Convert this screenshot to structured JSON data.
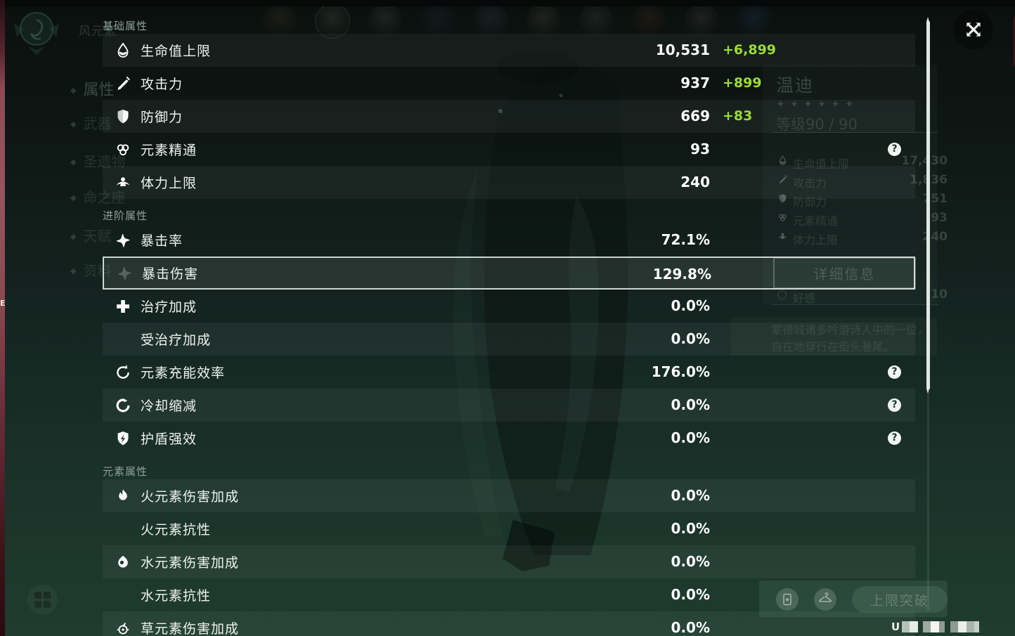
{
  "colors": {
    "accent_green": "#9bdc34",
    "panel_green": "#12211b",
    "highlight_border": "#e3ebe5",
    "scrollbar": "#dfe7e1"
  },
  "overlay": {
    "sections": [
      {
        "title": "基础属性",
        "rows": [
          {
            "icon": "hp-icon",
            "label": "生命值上限",
            "value": "10,531",
            "bonus": "+6,899",
            "help": false,
            "striped": true,
            "selected": false
          },
          {
            "icon": "atk-icon",
            "label": "攻击力",
            "value": "937",
            "bonus": "+899",
            "help": false,
            "striped": false,
            "selected": false
          },
          {
            "icon": "def-icon",
            "label": "防御力",
            "value": "669",
            "bonus": "+83",
            "help": false,
            "striped": true,
            "selected": false
          },
          {
            "icon": "em-icon",
            "label": "元素精通",
            "value": "93",
            "bonus": "",
            "help": true,
            "striped": false,
            "selected": false
          },
          {
            "icon": "stamina-icon",
            "label": "体力上限",
            "value": "240",
            "bonus": "",
            "help": false,
            "striped": true,
            "selected": false
          }
        ]
      },
      {
        "title": "进阶属性",
        "rows": [
          {
            "icon": "crit-rate-icon",
            "label": "暴击率",
            "value": "72.1%",
            "bonus": "",
            "help": false,
            "striped": false,
            "selected": false
          },
          {
            "icon": "crit-dmg-icon",
            "label": "暴击伤害",
            "value": "129.8%",
            "bonus": "",
            "help": false,
            "striped": true,
            "selected": true
          },
          {
            "icon": "healing-bonus-icon",
            "label": "治疗加成",
            "value": "0.0%",
            "bonus": "",
            "help": false,
            "striped": false,
            "selected": false
          },
          {
            "icon": "",
            "label": "受治疗加成",
            "value": "0.0%",
            "bonus": "",
            "help": false,
            "striped": true,
            "selected": false
          },
          {
            "icon": "energy-recharge-icon",
            "label": "元素充能效率",
            "value": "176.0%",
            "bonus": "",
            "help": true,
            "striped": false,
            "selected": false
          },
          {
            "icon": "cooldown-icon",
            "label": "冷却缩减",
            "value": "0.0%",
            "bonus": "",
            "help": true,
            "striped": true,
            "selected": false
          },
          {
            "icon": "shield-strength-icon",
            "label": "护盾强效",
            "value": "0.0%",
            "bonus": "",
            "help": true,
            "striped": false,
            "selected": false
          }
        ]
      },
      {
        "title": "元素属性",
        "rows": [
          {
            "icon": "pyro-icon",
            "label": "火元素伤害加成",
            "value": "0.0%",
            "bonus": "",
            "help": false,
            "striped": true,
            "selected": false
          },
          {
            "icon": "",
            "label": "火元素抗性",
            "value": "0.0%",
            "bonus": "",
            "help": false,
            "striped": false,
            "selected": false
          },
          {
            "icon": "hydro-icon",
            "label": "水元素伤害加成",
            "value": "0.0%",
            "bonus": "",
            "help": false,
            "striped": true,
            "selected": false
          },
          {
            "icon": "",
            "label": "水元素抗性",
            "value": "0.0%",
            "bonus": "",
            "help": false,
            "striped": false,
            "selected": false
          },
          {
            "icon": "dendro-icon",
            "label": "草元素伤害加成",
            "value": "0.0%",
            "bonus": "",
            "help": false,
            "striped": true,
            "selected": false
          }
        ]
      }
    ],
    "help_glyph": "?"
  },
  "background": {
    "element_label": "风元素",
    "sidebar": [
      {
        "label": "属性",
        "selected": true
      },
      {
        "label": "武器",
        "selected": false
      },
      {
        "label": "圣遗物",
        "selected": false
      },
      {
        "label": "命之座",
        "selected": false
      },
      {
        "label": "天赋",
        "selected": false
      },
      {
        "label": "资料",
        "selected": false
      }
    ],
    "character": {
      "name": "温迪",
      "stars": 6,
      "level_label": "等级90 / 90",
      "stats": [
        {
          "icon": "hp-icon",
          "label": "生命值上限",
          "value": "17,430"
        },
        {
          "icon": "atk-icon",
          "label": "攻击力",
          "value": "1,836"
        },
        {
          "icon": "def-icon",
          "label": "防御力",
          "value": "751"
        },
        {
          "icon": "em-icon",
          "label": "元素精通",
          "value": "93"
        },
        {
          "icon": "stamina-icon",
          "label": "体力上限",
          "value": "240"
        }
      ],
      "detail_button": "详细信息",
      "friendship_label": "好感",
      "friendship_value": "10",
      "description_lines": [
        "蒙德城诸多吟游诗人中的一位，",
        "自在地穿行在街头巷尾。"
      ]
    },
    "bottom": {
      "limit_break_button": "上限突破"
    },
    "left_edge_text": "E"
  }
}
